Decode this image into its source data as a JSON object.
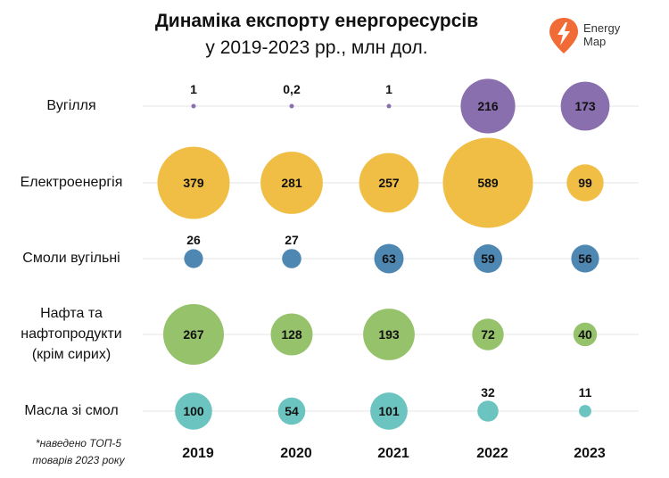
{
  "title_line1": "Динаміка експорту енергоресурсів",
  "title_line2": "у 2019-2023 рр., млн дол.",
  "logo": {
    "line1": "Energy",
    "line2": "Map",
    "accent": "#F06B35"
  },
  "footnote": {
    "line1": "*наведено ТОП-5",
    "line2": "товарів 2023 року"
  },
  "row_labels": [
    [
      "Вугілля"
    ],
    [
      "Електроенергія"
    ],
    [
      "Смоли вугільні"
    ],
    [
      "Нафта та",
      "нафтопродукти",
      "(крім сирих)"
    ],
    [
      "Масла зі смол"
    ]
  ],
  "chart_data": {
    "type": "bubble",
    "title": "Динаміка експорту енергоресурсів у 2019-2023 рр., млн дол.",
    "x": [
      "2019",
      "2020",
      "2021",
      "2022",
      "2023"
    ],
    "series": [
      {
        "name": "Вугілля",
        "color": "#8A6FAF",
        "values": [
          1,
          0.2,
          1,
          216,
          173
        ],
        "labels": [
          "1",
          "0,2",
          "1",
          "216",
          "173"
        ]
      },
      {
        "name": "Електроенергія",
        "color": "#F0BE45",
        "values": [
          379,
          281,
          257,
          589,
          99
        ],
        "labels": [
          "379",
          "281",
          "257",
          "589",
          "99"
        ]
      },
      {
        "name": "Смоли вугільні",
        "color": "#4E87B2",
        "values": [
          26,
          27,
          63,
          59,
          56
        ],
        "labels": [
          "26",
          "27",
          "63",
          "59",
          "56"
        ]
      },
      {
        "name": "Нафта та нафтопродукти (крім сирих)",
        "color": "#95C26A",
        "values": [
          267,
          128,
          193,
          72,
          40
        ],
        "labels": [
          "267",
          "128",
          "193",
          "72",
          "40"
        ]
      },
      {
        "name": "Масла зі смол",
        "color": "#6CC4C0",
        "values": [
          100,
          54,
          101,
          32,
          11
        ],
        "labels": [
          "100",
          "54",
          "101",
          "32",
          "11"
        ]
      }
    ],
    "grid": true
  }
}
